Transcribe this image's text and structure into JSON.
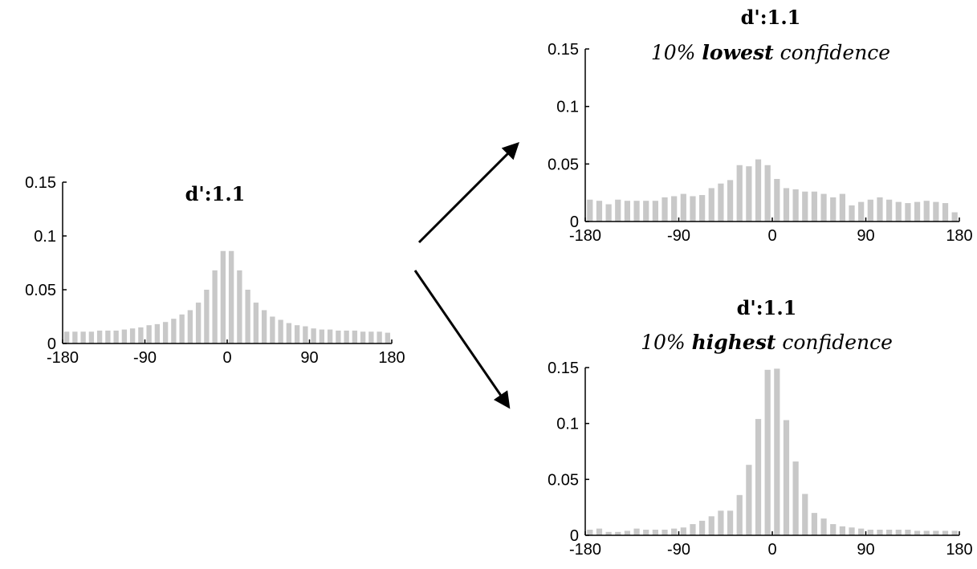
{
  "colors": {
    "bar": "#c8c8c8",
    "axis": "#000000",
    "arrow": "#000000"
  },
  "arrows": [
    {
      "from": "left-panel",
      "to": "top-right-panel"
    },
    {
      "from": "left-panel",
      "to": "bottom-right-panel"
    }
  ],
  "chart_data": [
    {
      "id": "left",
      "type": "bar",
      "title": "d':1.1",
      "subtitle": null,
      "xlim": [
        -180,
        180
      ],
      "ylim": [
        0,
        0.15
      ],
      "xticks": [
        -180,
        -90,
        0,
        90,
        180
      ],
      "yticks": [
        0,
        0.05,
        0.1,
        0.15
      ],
      "ytick_labels": [
        "0",
        "0.05",
        "0.1",
        "0.15"
      ],
      "xlabel": "",
      "ylabel": "",
      "bin_width": 9,
      "x": [
        -175.5,
        -166.5,
        -157.5,
        -148.5,
        -139.5,
        -130.5,
        -121.5,
        -112.5,
        -103.5,
        -94.5,
        -85.5,
        -76.5,
        -67.5,
        -58.5,
        -49.5,
        -40.5,
        -31.5,
        -22.5,
        -13.5,
        -4.5,
        4.5,
        13.5,
        22.5,
        31.5,
        40.5,
        49.5,
        58.5,
        67.5,
        76.5,
        85.5,
        94.5,
        103.5,
        112.5,
        121.5,
        130.5,
        139.5,
        148.5,
        157.5,
        166.5,
        175.5
      ],
      "values": [
        0.011,
        0.011,
        0.011,
        0.011,
        0.012,
        0.012,
        0.012,
        0.013,
        0.014,
        0.015,
        0.017,
        0.018,
        0.02,
        0.023,
        0.027,
        0.031,
        0.038,
        0.05,
        0.068,
        0.086,
        0.086,
        0.068,
        0.05,
        0.038,
        0.031,
        0.025,
        0.022,
        0.019,
        0.017,
        0.016,
        0.014,
        0.013,
        0.013,
        0.012,
        0.012,
        0.012,
        0.011,
        0.011,
        0.011,
        0.01
      ]
    },
    {
      "id": "top-right",
      "type": "bar",
      "title": "d':1.1",
      "subtitle": {
        "before": "10% ",
        "bold": "lowest",
        "after": " confidence"
      },
      "xlim": [
        -180,
        180
      ],
      "ylim": [
        0,
        0.15
      ],
      "xticks": [
        -180,
        -90,
        0,
        90,
        180
      ],
      "yticks": [
        0,
        0.05,
        0.1,
        0.15
      ],
      "ytick_labels": [
        "0",
        "0.05",
        "0.1",
        "0.15"
      ],
      "xlabel": "",
      "ylabel": "",
      "bin_width": 9,
      "x": [
        -175.5,
        -166.5,
        -157.5,
        -148.5,
        -139.5,
        -130.5,
        -121.5,
        -112.5,
        -103.5,
        -94.5,
        -85.5,
        -76.5,
        -67.5,
        -58.5,
        -49.5,
        -40.5,
        -31.5,
        -22.5,
        -13.5,
        -4.5,
        4.5,
        13.5,
        22.5,
        31.5,
        40.5,
        49.5,
        58.5,
        67.5,
        76.5,
        85.5,
        94.5,
        103.5,
        112.5,
        121.5,
        130.5,
        139.5,
        148.5,
        157.5,
        166.5,
        175.5
      ],
      "values": [
        0.019,
        0.018,
        0.015,
        0.019,
        0.018,
        0.018,
        0.018,
        0.018,
        0.021,
        0.022,
        0.024,
        0.022,
        0.023,
        0.029,
        0.033,
        0.036,
        0.049,
        0.048,
        0.054,
        0.049,
        0.037,
        0.029,
        0.028,
        0.026,
        0.026,
        0.024,
        0.021,
        0.024,
        0.014,
        0.017,
        0.019,
        0.021,
        0.019,
        0.017,
        0.016,
        0.017,
        0.018,
        0.017,
        0.016,
        0.008
      ]
    },
    {
      "id": "bottom-right",
      "type": "bar",
      "title": "d':1.1",
      "subtitle": {
        "before": "10% ",
        "bold": "highest",
        "after": " confidence"
      },
      "xlim": [
        -180,
        180
      ],
      "ylim": [
        0,
        0.15
      ],
      "xticks": [
        -180,
        -90,
        0,
        90,
        180
      ],
      "yticks": [
        0,
        0.05,
        0.1,
        0.15
      ],
      "ytick_labels": [
        "0",
        "0.05",
        "0.1",
        "0.15"
      ],
      "xlabel": "",
      "ylabel": "",
      "bin_width": 9,
      "x": [
        -175.5,
        -166.5,
        -157.5,
        -148.5,
        -139.5,
        -130.5,
        -121.5,
        -112.5,
        -103.5,
        -94.5,
        -85.5,
        -76.5,
        -67.5,
        -58.5,
        -49.5,
        -40.5,
        -31.5,
        -22.5,
        -13.5,
        -4.5,
        4.5,
        13.5,
        22.5,
        31.5,
        40.5,
        49.5,
        58.5,
        67.5,
        76.5,
        85.5,
        94.5,
        103.5,
        112.5,
        121.5,
        130.5,
        139.5,
        148.5,
        157.5,
        166.5,
        175.5
      ],
      "values": [
        0.005,
        0.006,
        0.003,
        0.003,
        0.004,
        0.006,
        0.005,
        0.005,
        0.005,
        0.006,
        0.007,
        0.01,
        0.013,
        0.017,
        0.022,
        0.022,
        0.036,
        0.063,
        0.104,
        0.148,
        0.149,
        0.103,
        0.066,
        0.037,
        0.02,
        0.015,
        0.01,
        0.008,
        0.007,
        0.006,
        0.005,
        0.005,
        0.005,
        0.005,
        0.005,
        0.004,
        0.004,
        0.004,
        0.004,
        0.004
      ]
    }
  ]
}
